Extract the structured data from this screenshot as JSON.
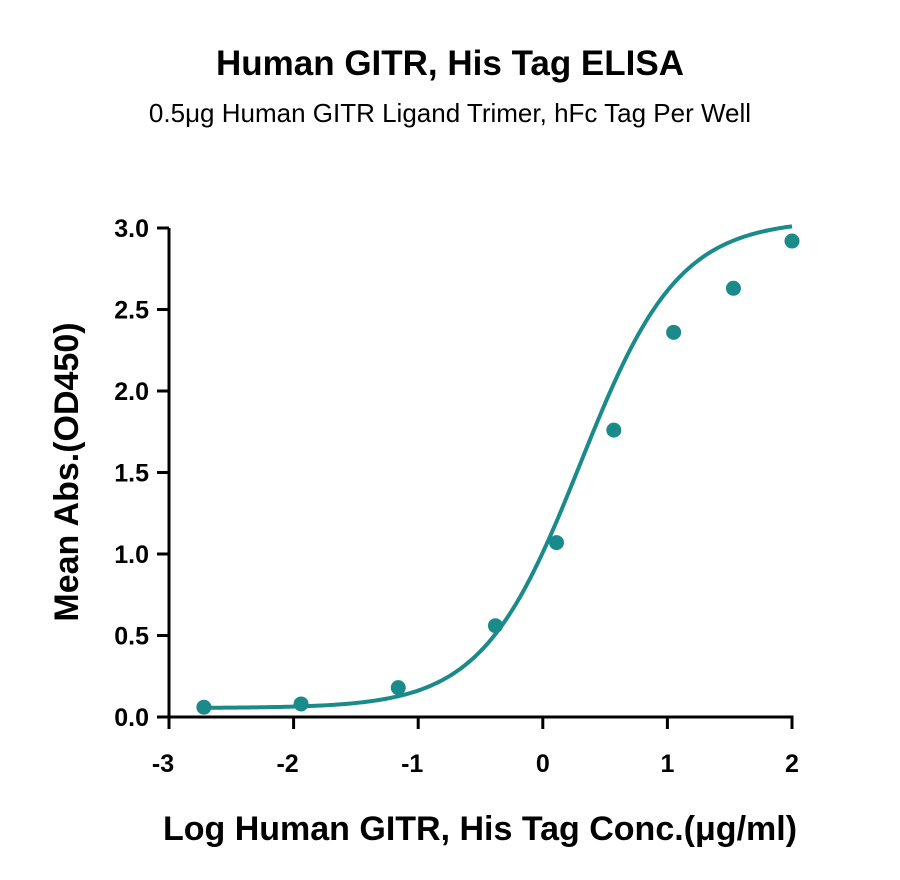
{
  "chart_data": {
    "type": "scatter",
    "title": "Human GITR, His Tag ELISA",
    "subtitle": "0.5μg Human GITR Ligand Trimer, hFc Tag Per Well",
    "xlabel": "Log Human GITR, His Tag Conc.(μg/ml)",
    "ylabel": "Mean Abs.(OD450)",
    "xlim": [
      -3,
      2
    ],
    "ylim": [
      0,
      3
    ],
    "x_ticks": [
      "-3",
      "-2",
      "-1",
      "0",
      "1",
      "2"
    ],
    "y_ticks": [
      "0.0",
      "0.5",
      "1.0",
      "1.5",
      "2.0",
      "2.5",
      "3.0"
    ],
    "grid": false,
    "color": "#1a8a8a",
    "series": [
      {
        "x": [
          -2.72,
          -1.94,
          -1.16,
          -0.38,
          0.11,
          0.57,
          1.05,
          1.53,
          2.0
        ],
        "y": [
          0.06,
          0.08,
          0.18,
          0.56,
          1.07,
          1.76,
          2.36,
          2.63,
          2.92
        ]
      }
    ]
  }
}
